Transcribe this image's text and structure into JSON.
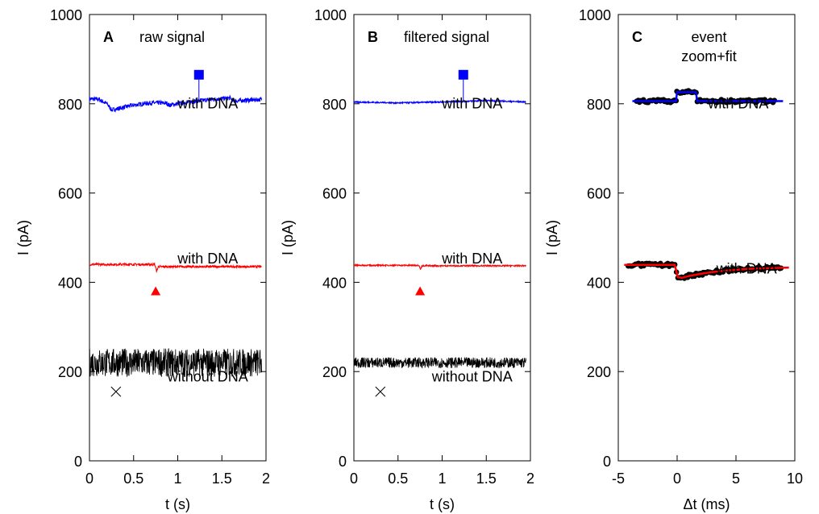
{
  "chart_data": [
    {
      "type": "line",
      "panel_letter": "A",
      "title": "raw signal",
      "xlabel": "t (s)",
      "ylabel": "I (pA)",
      "xlim": [
        0,
        2
      ],
      "ylim": [
        0,
        1000
      ],
      "xticks": [
        "0",
        "0.5",
        "1",
        "1.5",
        "2"
      ],
      "yticks": [
        "0",
        "200",
        "400",
        "600",
        "800",
        "1000"
      ],
      "series": [
        {
          "name": "with DNA",
          "color": "#0000ff",
          "marker": "square",
          "marker_at": [
            1.24,
            865
          ],
          "x": [
            0,
            0.1,
            0.2,
            0.25,
            0.3,
            0.45,
            0.6,
            0.7,
            0.8,
            0.88,
            0.9,
            1.0,
            1.2,
            1.4,
            1.6,
            1.62,
            1.8,
            1.95
          ],
          "y": [
            811,
            810,
            800,
            786,
            788,
            795,
            800,
            802,
            802,
            801,
            797,
            800,
            806,
            810,
            813,
            806,
            808,
            810
          ]
        },
        {
          "name": "with DNA",
          "color": "#ff0000",
          "marker": "triangle",
          "marker_at": [
            0.75,
            380
          ],
          "x": [
            0,
            0.74,
            0.76,
            0.78,
            1.95
          ],
          "y": [
            440,
            440,
            425,
            435,
            435
          ]
        },
        {
          "name": "without DNA",
          "color": "#000000",
          "marker": "x",
          "marker_at": [
            0.3,
            155
          ],
          "x": [
            0,
            1.95
          ],
          "y": [
            220,
            220
          ]
        }
      ]
    },
    {
      "type": "line",
      "panel_letter": "B",
      "title": "filtered signal",
      "xlabel": "t (s)",
      "ylabel": "I (pA)",
      "xlim": [
        0,
        2
      ],
      "ylim": [
        0,
        1000
      ],
      "xticks": [
        "0",
        "0.5",
        "1",
        "1.5",
        "2"
      ],
      "yticks": [
        "0",
        "200",
        "400",
        "600",
        "800",
        "1000"
      ],
      "series": [
        {
          "name": "with DNA",
          "color": "#0000ff",
          "marker": "square",
          "marker_at": [
            1.24,
            865
          ],
          "x": [
            0,
            0.5,
            1.0,
            1.5,
            1.95
          ],
          "y": [
            804,
            802,
            804,
            807,
            804
          ]
        },
        {
          "name": "with DNA",
          "color": "#ff0000",
          "marker": "triangle",
          "marker_at": [
            0.75,
            380
          ],
          "x": [
            0,
            0.74,
            0.755,
            0.77,
            1.95
          ],
          "y": [
            438,
            438,
            428,
            437,
            437
          ]
        },
        {
          "name": "without DNA",
          "color": "#000000",
          "marker": "x",
          "marker_at": [
            0.3,
            155
          ],
          "x": [
            0,
            1.95
          ],
          "y": [
            220,
            220
          ]
        }
      ]
    },
    {
      "type": "line",
      "panel_letter": "C",
      "title": "event zoom+fit",
      "xlabel": "Δt (ms)",
      "ylabel": "I (pA)",
      "xlim": [
        -5,
        10
      ],
      "ylim": [
        0,
        1000
      ],
      "xticks": [
        "-5",
        "0",
        "5",
        "10"
      ],
      "yticks": [
        "0",
        "200",
        "400",
        "600",
        "800",
        "1000"
      ],
      "series": [
        {
          "name": "with DNA",
          "color": "#0000ff",
          "fit": true,
          "x": [
            -3.8,
            -0.1,
            0,
            1.6,
            1.7,
            9.0
          ],
          "y": [
            806,
            806,
            826,
            826,
            806,
            806
          ]
        },
        {
          "name": "with DNA",
          "color": "#ff0000",
          "fit": true,
          "x": [
            -4.5,
            -0.2,
            0.05,
            0.4,
            1,
            2,
            3,
            4,
            5,
            6,
            7,
            8,
            9.5
          ],
          "y": [
            439,
            439,
            412,
            410,
            414,
            419,
            423,
            426,
            428,
            430,
            431,
            432,
            433
          ]
        }
      ]
    }
  ]
}
